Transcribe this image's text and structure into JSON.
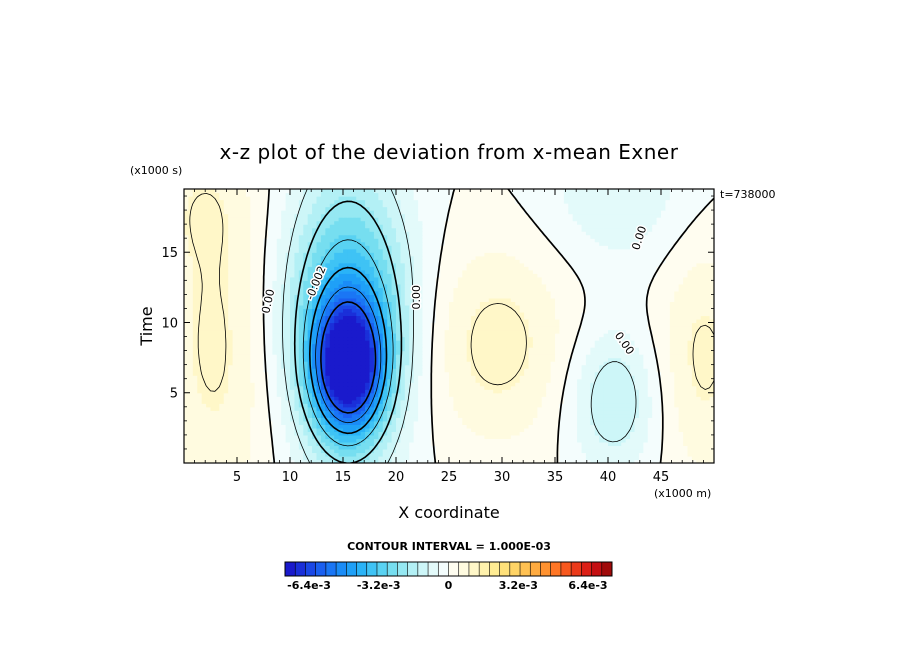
{
  "chart_data": {
    "type": "heatmap",
    "title": "x-z plot of the deviation from x-mean Exner",
    "xlabel": "X coordinate",
    "ylabel": "Time",
    "x_unit": "(x1000 m)",
    "y_unit": "(x1000 s)",
    "time_stamp": "t=738000",
    "xlim": [
      0,
      50
    ],
    "ylim": [
      0,
      19.5
    ],
    "x_ticks": [
      5,
      10,
      15,
      20,
      25,
      30,
      35,
      40,
      45
    ],
    "y_ticks": [
      5,
      10,
      15
    ],
    "contour_interval": "CONTOUR INTERVAL = 1.000E-03",
    "contour_labels": [
      {
        "text": "0.00",
        "x": 8,
        "y": 11.5,
        "angle": -78
      },
      {
        "text": "-0.002",
        "x": 12.5,
        "y": 12.8,
        "angle": -68
      },
      {
        "text": "0.00",
        "x": 22,
        "y": 11.8,
        "angle": -90
      },
      {
        "text": "0.00",
        "x": 43,
        "y": 16,
        "angle": -72
      },
      {
        "text": "0.00",
        "x": 41.5,
        "y": 8.5,
        "angle": 55
      }
    ],
    "anomalies": [
      {
        "x": 15.5,
        "y": 6.8,
        "sx": 2.3,
        "sy": 3.2,
        "a": -0.006
      },
      {
        "x": 15.5,
        "y": 10.5,
        "sx": 4.2,
        "sy": 6.0,
        "a": -0.003
      },
      {
        "x": 15.5,
        "y": 10.0,
        "sx": 3.5,
        "sy": 13.0,
        "a": -0.001
      },
      {
        "x": 40.5,
        "y": 4.5,
        "sx": 3.0,
        "sy": 3.6,
        "a": -0.0015
      },
      {
        "x": 41.0,
        "y": 19.5,
        "sx": 5.0,
        "sy": 4.0,
        "a": -0.0009
      },
      {
        "x": 29.5,
        "y": 8.5,
        "sx": 5.0,
        "sy": 5.0,
        "a": 0.0012
      },
      {
        "x": 3.0,
        "y": 8.5,
        "sx": 4.0,
        "sy": 9.0,
        "a": 0.0011
      },
      {
        "x": 49.0,
        "y": 7.5,
        "sx": 3.2,
        "sy": 6.0,
        "a": 0.0011
      },
      {
        "x": 1.5,
        "y": 18.5,
        "sx": 3.0,
        "sy": 3.0,
        "a": 0.0005
      }
    ],
    "colorbar": {
      "min": -0.0075,
      "max": 0.0075,
      "labels": [
        {
          "text": "-6.4e-3",
          "value": -0.0064
        },
        {
          "text": "-3.2e-3",
          "value": -0.0032
        },
        {
          "text": "0",
          "value": 0
        },
        {
          "text": "3.2e-3",
          "value": 0.0032
        },
        {
          "text": "6.4e-3",
          "value": 0.0064
        }
      ],
      "colors": [
        "#1a1acc",
        "#1a2fd9",
        "#1a47e6",
        "#1a5ff0",
        "#1a76f5",
        "#1a8cf7",
        "#1fa0f7",
        "#2ab3f7",
        "#3fc3f5",
        "#59d2f2",
        "#76def0",
        "#95e8f2",
        "#b3f0f5",
        "#cdf6f8",
        "#e3fafa",
        "#f4fdfd",
        "#fffdf0",
        "#fffbe0",
        "#fff7c8",
        "#fff2ad",
        "#ffec93",
        "#ffe17a",
        "#ffd466",
        "#ffc152",
        "#ffab40",
        "#ff9230",
        "#ff7625",
        "#f7581e",
        "#eb3a1a",
        "#dc1f16",
        "#c40f12",
        "#a00a0a"
      ]
    }
  }
}
